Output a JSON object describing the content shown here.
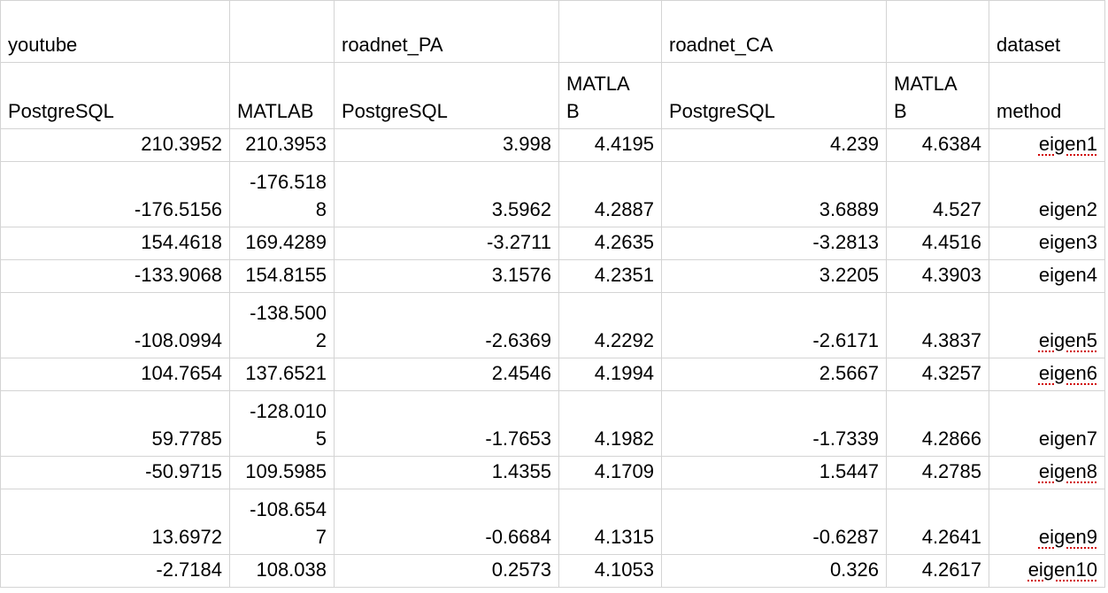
{
  "sheet": {
    "header_row_1": [
      "youtube",
      "",
      "roadnet_PA",
      "",
      "roadnet_CA",
      "",
      "dataset"
    ],
    "header_row_2": [
      "PostgreSQL",
      "MATLAB",
      "PostgreSQL",
      "MATLA\nB",
      "PostgreSQL",
      "MATLA\nB",
      "method"
    ],
    "rows": [
      [
        "210.3952",
        "210.3953",
        "3.998",
        "4.4195",
        "4.239",
        "4.6384",
        "eigen1"
      ],
      [
        "-176.5156",
        "-176.518\n8",
        "3.5962",
        "4.2887",
        "3.6889",
        "4.527",
        "eigen2"
      ],
      [
        "154.4618",
        "169.4289",
        "-3.2711",
        "4.2635",
        "-3.2813",
        "4.4516",
        "eigen3"
      ],
      [
        "-133.9068",
        "154.8155",
        "3.1576",
        "4.2351",
        "3.2205",
        "4.3903",
        "eigen4"
      ],
      [
        "-108.0994",
        "-138.500\n2",
        "-2.6369",
        "4.2292",
        "-2.6171",
        "4.3837",
        "eigen5"
      ],
      [
        "104.7654",
        "137.6521",
        "2.4546",
        "4.1994",
        "2.5667",
        "4.3257",
        "eigen6"
      ],
      [
        "59.7785",
        "-128.010\n5",
        "-1.7653",
        "4.1982",
        "-1.7339",
        "4.2866",
        "eigen7"
      ],
      [
        "-50.9715",
        "109.5985",
        "1.4355",
        "4.1709",
        "1.5447",
        "4.2785",
        "eigen8"
      ],
      [
        "13.6972",
        "-108.654\n7",
        "-0.6684",
        "4.1315",
        "-0.6287",
        "4.2641",
        "eigen9"
      ],
      [
        "-2.7184",
        "108.038",
        "0.2573",
        "4.1053",
        "0.326",
        "4.2617",
        "eigen10"
      ]
    ],
    "spellcheck_flagged_rows": [
      "eigen1",
      "eigen5",
      "eigen6",
      "eigen8",
      "eigen9",
      "eigen10"
    ]
  }
}
